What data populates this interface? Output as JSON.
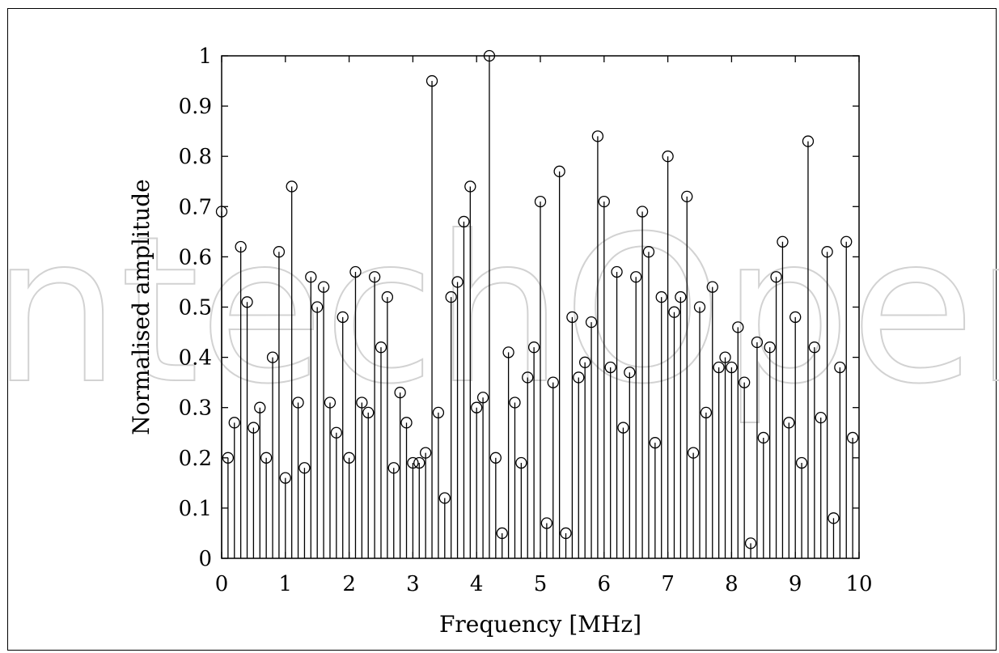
{
  "chart_data": {
    "type": "stem",
    "xlabel": "Frequency [MHz]",
    "ylabel": "Normalised amplitude",
    "xlim": [
      0,
      10
    ],
    "ylim": [
      0,
      1
    ],
    "grid": false,
    "marker": "circle",
    "x_ticks": [
      "0",
      "1",
      "2",
      "3",
      "4",
      "5",
      "6",
      "7",
      "8",
      "9",
      "10"
    ],
    "y_ticks": [
      "0",
      "0.1",
      "0.2",
      "0.3",
      "0.4",
      "0.5",
      "0.6",
      "0.7",
      "0.8",
      "0.9",
      "1"
    ],
    "x_step": 0.1,
    "values": [
      0.69,
      0.2,
      0.27,
      0.62,
      0.51,
      0.26,
      0.3,
      0.2,
      0.4,
      0.61,
      0.16,
      0.74,
      0.31,
      0.18,
      0.56,
      0.5,
      0.54,
      0.31,
      0.25,
      0.48,
      0.2,
      0.57,
      0.31,
      0.29,
      0.56,
      0.42,
      0.52,
      0.18,
      0.33,
      0.27,
      0.19,
      0.19,
      0.21,
      0.95,
      0.29,
      0.12,
      0.52,
      0.55,
      0.67,
      0.74,
      0.3,
      0.32,
      1.0,
      0.2,
      0.05,
      0.41,
      0.31,
      0.19,
      0.36,
      0.42,
      0.71,
      0.07,
      0.35,
      0.77,
      0.05,
      0.48,
      0.36,
      0.39,
      0.47,
      0.84,
      0.71,
      0.38,
      0.57,
      0.26,
      0.37,
      0.56,
      0.69,
      0.61,
      0.23,
      0.52,
      0.8,
      0.49,
      0.52,
      0.72,
      0.21,
      0.5,
      0.29,
      0.54,
      0.38,
      0.4,
      0.38,
      0.46,
      0.35,
      0.03,
      0.43,
      0.24,
      0.42,
      0.56,
      0.63,
      0.27,
      0.48,
      0.19,
      0.83,
      0.42,
      0.28,
      0.61,
      0.08,
      0.38,
      0.63,
      0.24
    ],
    "colors": {
      "line": "#000000",
      "background": "#ffffff"
    }
  },
  "watermark": "IntechOpen"
}
